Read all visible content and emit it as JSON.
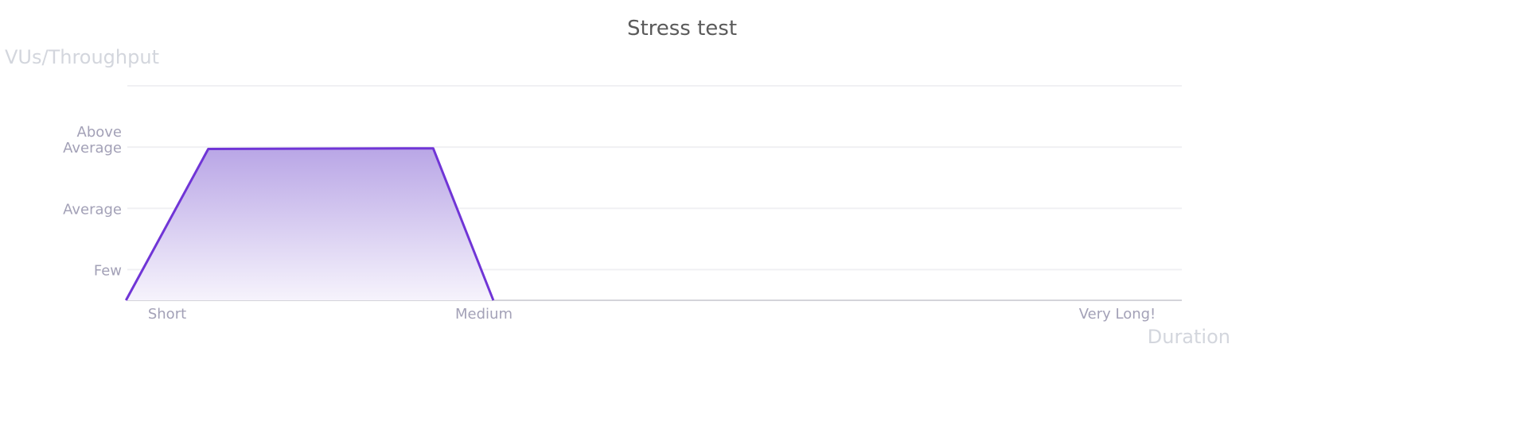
{
  "chart_data": {
    "type": "area",
    "title": "Stress test",
    "ylabel": "VUs/Throughput",
    "xlabel": "Duration",
    "y_ticks": [
      {
        "value": 1,
        "label": "Few"
      },
      {
        "value": 2,
        "label": "Average"
      },
      {
        "value": 3,
        "label": [
          "Above",
          "Average"
        ]
      },
      {
        "value": 4,
        "label": ""
      }
    ],
    "x_ticks": [
      {
        "value": 1,
        "label": "Short"
      },
      {
        "value": 2,
        "label": "Medium"
      },
      {
        "value": 4,
        "label": "Very Long!"
      }
    ],
    "xlim": [
      0.87,
      4.2
    ],
    "ylim": [
      0.5,
      4
    ],
    "grid": true,
    "series": [
      {
        "x": [
          0.87,
          1.13,
          1.84,
          2.03
        ],
        "y": [
          0.5,
          2.97,
          2.98,
          0.5
        ]
      }
    ],
    "colors": {
      "line": "#7035d6",
      "fill_top": "#b9a6e6",
      "fill_bottom": "#f6f3fc",
      "grid": "#f0f0f3",
      "axis": "#d4d4da"
    }
  }
}
